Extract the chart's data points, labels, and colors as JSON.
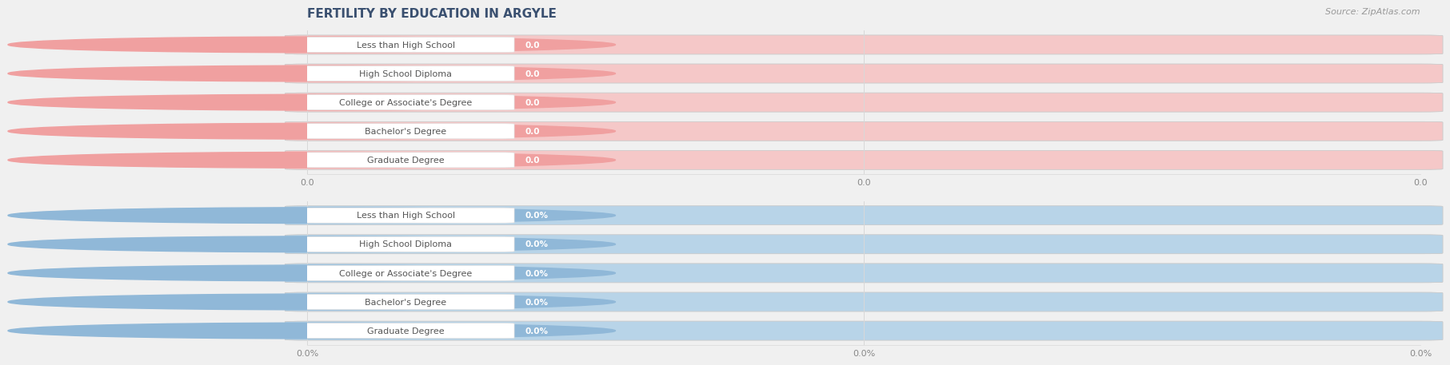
{
  "title": "FERTILITY BY EDUCATION IN ARGYLE",
  "source": "Source: ZipAtlas.com",
  "categories": [
    "Less than High School",
    "High School Diploma",
    "College or Associate's Degree",
    "Bachelor's Degree",
    "Graduate Degree"
  ],
  "top_values": [
    0.0,
    0.0,
    0.0,
    0.0,
    0.0
  ],
  "bottom_values": [
    0.0,
    0.0,
    0.0,
    0.0,
    0.0
  ],
  "top_bar_color": "#f0a0a0",
  "top_bar_bg_color": "#f5c8c8",
  "top_left_nub_color": "#e07878",
  "bottom_bar_color": "#90b8d8",
  "bottom_bar_bg_color": "#b8d4e8",
  "bottom_left_nub_color": "#6898c0",
  "title_color": "#3a5070",
  "source_color": "#999999",
  "tick_label_color": "#888888",
  "grid_color": "#d8d8d8",
  "background_color": "#f0f0f0",
  "row_bg_color": "#e8e8e8",
  "white_pill_color": "#ffffff",
  "label_text_color": "#555555",
  "value_text_color": "#ffffff",
  "title_fontsize": 11,
  "label_fontsize": 8,
  "value_fontsize": 7.5,
  "tick_fontsize": 8,
  "source_fontsize": 8,
  "top_xtick_labels": [
    "0.0",
    "0.0",
    "0.0"
  ],
  "bottom_xtick_labels": [
    "0.0%",
    "0.0%",
    "0.0%"
  ]
}
